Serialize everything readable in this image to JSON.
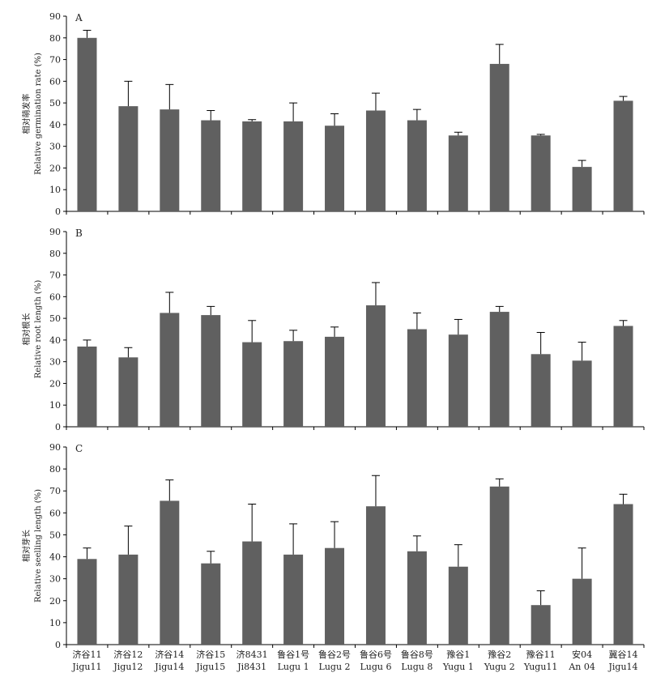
{
  "chart_data": [
    {
      "type": "bar",
      "panel": "A",
      "ylabel_cn": "相对萌发率",
      "ylabel": "Relative germination rate (%)",
      "ylim": [
        0,
        90
      ],
      "yticks": [
        0,
        10,
        20,
        30,
        40,
        50,
        60,
        70,
        80,
        90
      ],
      "values": [
        80,
        48.5,
        47,
        42,
        41.5,
        41.5,
        39.5,
        46.5,
        42,
        35,
        68,
        35,
        20.5,
        51
      ],
      "errors": [
        3.5,
        11.5,
        11.5,
        4.5,
        0.8,
        8.5,
        5.5,
        8,
        5,
        1.5,
        9,
        0.5,
        3,
        2
      ]
    },
    {
      "type": "bar",
      "panel": "B",
      "ylabel_cn": "相对根长",
      "ylabel": "Relative root length (%)",
      "ylim": [
        0,
        90
      ],
      "yticks": [
        0,
        10,
        20,
        30,
        40,
        50,
        60,
        70,
        80,
        90
      ],
      "values": [
        37,
        32,
        52.5,
        51.5,
        39,
        39.5,
        41.5,
        56,
        45,
        42.5,
        53,
        33.5,
        30.5,
        46.5
      ],
      "errors": [
        3,
        4.5,
        9.5,
        4,
        10,
        5,
        4.5,
        10.5,
        7.5,
        7,
        2.5,
        10,
        8.5,
        2.5
      ]
    },
    {
      "type": "bar",
      "panel": "C",
      "ylabel_cn": "相对芽长",
      "ylabel": "Relative seelling length (%)",
      "ylim": [
        0,
        90
      ],
      "yticks": [
        0,
        10,
        20,
        30,
        40,
        50,
        60,
        70,
        80,
        90
      ],
      "values": [
        39,
        41,
        65.5,
        37,
        47,
        41,
        44,
        63,
        42.5,
        35.5,
        72,
        18,
        30,
        64
      ],
      "errors": [
        5,
        13,
        9.5,
        5.5,
        17,
        14,
        12,
        14,
        7,
        10,
        3.5,
        6.5,
        14,
        4.5
      ]
    }
  ],
  "categories_cn": [
    "济谷11",
    "济谷12",
    "济谷14",
    "济谷15",
    "济8431",
    "鲁谷1号",
    "鲁谷2号",
    "鲁谷6号",
    "鲁谷8号",
    "豫谷1",
    "豫谷2",
    "豫谷11",
    "安04",
    "冀谷14"
  ],
  "categories_en": [
    "Jigu11",
    "Jigu12",
    "Jigu14",
    "Jigu15",
    "Ji8431",
    "Lugu 1",
    "Lugu 2",
    "Lugu 6",
    "Lugu 8",
    "Yugu 1",
    "Yugu 2",
    "Yugu11",
    "An 04",
    "Jigu14"
  ],
  "colors": {
    "bar": "#606060",
    "axis": "#000000",
    "error": "#000000"
  }
}
